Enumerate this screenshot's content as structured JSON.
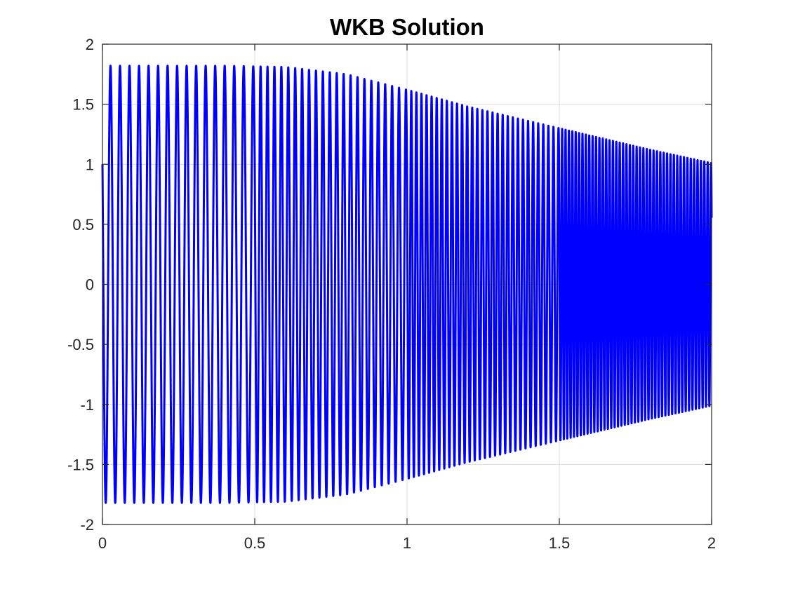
{
  "chart_data": {
    "type": "line",
    "title": "WKB Solution",
    "xlabel": "",
    "ylabel": "",
    "xlim": [
      0,
      2
    ],
    "ylim": [
      -2,
      2
    ],
    "grid": true,
    "legend": "none",
    "x_ticks": [
      0,
      0.5,
      1,
      1.5,
      2
    ],
    "x_tick_labels": [
      "0",
      "0.5",
      "1",
      "1.5",
      "2"
    ],
    "y_ticks": [
      -2,
      -1.5,
      -1,
      -0.5,
      0,
      0.5,
      1,
      1.5,
      2
    ],
    "y_tick_labels": [
      "-2",
      "-1.5",
      "-1",
      "-0.5",
      "0",
      "0.5",
      "1",
      "1.5",
      "2"
    ],
    "series": [
      {
        "color": "#0000ff",
        "x_range": [
          0,
          2
        ],
        "y_start": 1,
        "y_end": 1,
        "envelope": {
          "x": [
            0,
            0.05,
            0.4,
            0.6,
            0.8,
            1.0,
            1.2,
            1.4,
            1.6,
            1.8,
            2.0
          ],
          "amplitude": [
            1.82,
            1.82,
            1.82,
            1.81,
            1.75,
            1.62,
            1.48,
            1.36,
            1.24,
            1.12,
            1.01
          ]
        },
        "peaks_per_interval": [
          {
            "x_from": 0,
            "x_to": 0.5,
            "peaks": 16
          },
          {
            "x_from": 0.5,
            "x_to": 1.0,
            "peaks": 22
          },
          {
            "x_from": 1.0,
            "x_to": 1.5,
            "peaks": 30
          },
          {
            "x_from": 1.5,
            "x_to": 2.0,
            "peaks": 45
          }
        ]
      }
    ]
  },
  "colors": {
    "line": "#0000ff",
    "axes": "#262626",
    "grid": "#dcdcdc",
    "background": "#ffffff"
  }
}
